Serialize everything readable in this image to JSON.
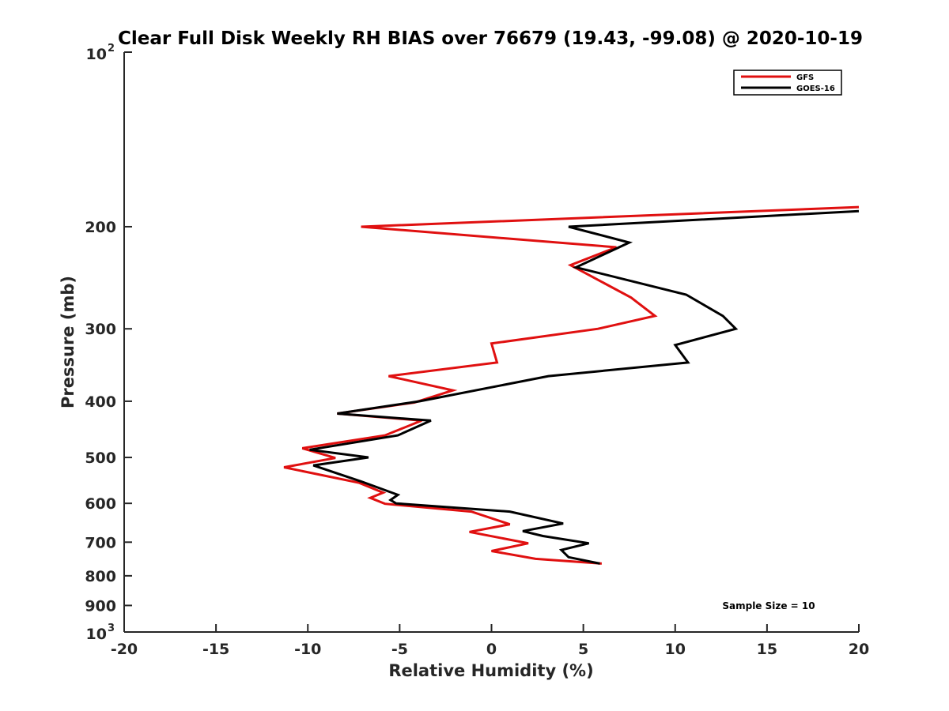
{
  "chart_data": {
    "type": "line",
    "title": "Clear Full Disk Weekly RH BIAS over 76679 (19.43, -99.08) @ 2020-10-19",
    "xlabel": "Relative Humidity (%)",
    "ylabel": "Pressure (mb)",
    "xlim": [
      -20,
      20
    ],
    "ylim": [
      100,
      1000
    ],
    "y_scale": "log",
    "y_reversed": true,
    "grid": false,
    "legend_position": "top-right",
    "x_ticks": [
      "-20",
      "-15",
      "-10",
      "-5",
      "0",
      "5",
      "10",
      "15",
      "20"
    ],
    "y_ticks": [
      {
        "value": 100,
        "base": "10",
        "exp": "2"
      },
      {
        "value": 200,
        "label": "200"
      },
      {
        "value": 300,
        "label": "300"
      },
      {
        "value": 400,
        "label": "400"
      },
      {
        "value": 500,
        "label": "500"
      },
      {
        "value": 600,
        "label": "600"
      },
      {
        "value": 700,
        "label": "700"
      },
      {
        "value": 800,
        "label": "800"
      },
      {
        "value": 900,
        "label": "900"
      },
      {
        "value": 1000,
        "base": "10",
        "exp": "3"
      }
    ],
    "series": [
      {
        "name": "GFS",
        "color": "#e01010",
        "points": [
          {
            "x": 20.0,
            "y": 185
          },
          {
            "x": -7.1,
            "y": 200
          },
          {
            "x": 6.8,
            "y": 217
          },
          {
            "x": 4.3,
            "y": 233
          },
          {
            "x": 7.6,
            "y": 265
          },
          {
            "x": 8.9,
            "y": 285
          },
          {
            "x": 5.8,
            "y": 300
          },
          {
            "x": 0.0,
            "y": 318
          },
          {
            "x": 0.3,
            "y": 343
          },
          {
            "x": -5.6,
            "y": 362
          },
          {
            "x": -2.1,
            "y": 383
          },
          {
            "x": -4.2,
            "y": 402
          },
          {
            "x": -8.4,
            "y": 420
          },
          {
            "x": -3.8,
            "y": 432
          },
          {
            "x": -5.8,
            "y": 458
          },
          {
            "x": -10.3,
            "y": 482
          },
          {
            "x": -8.5,
            "y": 501
          },
          {
            "x": -11.3,
            "y": 520
          },
          {
            "x": -7.2,
            "y": 553
          },
          {
            "x": -5.9,
            "y": 575
          },
          {
            "x": -6.6,
            "y": 587
          },
          {
            "x": -5.8,
            "y": 601
          },
          {
            "x": -1.1,
            "y": 620
          },
          {
            "x": 1.0,
            "y": 652
          },
          {
            "x": -1.2,
            "y": 672
          },
          {
            "x": 2.0,
            "y": 703
          },
          {
            "x": 0.0,
            "y": 725
          },
          {
            "x": 2.4,
            "y": 748
          },
          {
            "x": 6.0,
            "y": 762
          }
        ]
      },
      {
        "name": "GOES-16",
        "color": "#000000",
        "points": [
          {
            "x": 20.0,
            "y": 188
          },
          {
            "x": 4.2,
            "y": 200
          },
          {
            "x": 7.5,
            "y": 213
          },
          {
            "x": 4.6,
            "y": 235
          },
          {
            "x": 10.6,
            "y": 262
          },
          {
            "x": 12.6,
            "y": 285
          },
          {
            "x": 13.3,
            "y": 300
          },
          {
            "x": 10.0,
            "y": 320
          },
          {
            "x": 10.7,
            "y": 343
          },
          {
            "x": 3.1,
            "y": 362
          },
          {
            "x": -3.9,
            "y": 400
          },
          {
            "x": -8.4,
            "y": 420
          },
          {
            "x": -3.3,
            "y": 432
          },
          {
            "x": -5.1,
            "y": 458
          },
          {
            "x": -9.9,
            "y": 485
          },
          {
            "x": -6.7,
            "y": 500
          },
          {
            "x": -9.7,
            "y": 516
          },
          {
            "x": -7.1,
            "y": 550
          },
          {
            "x": -5.1,
            "y": 580
          },
          {
            "x": -5.5,
            "y": 592
          },
          {
            "x": -5.2,
            "y": 600
          },
          {
            "x": 1.0,
            "y": 620
          },
          {
            "x": 3.9,
            "y": 650
          },
          {
            "x": 1.7,
            "y": 670
          },
          {
            "x": 2.8,
            "y": 683
          },
          {
            "x": 5.3,
            "y": 703
          },
          {
            "x": 3.8,
            "y": 722
          },
          {
            "x": 4.2,
            "y": 743
          },
          {
            "x": 5.9,
            "y": 762
          }
        ]
      }
    ],
    "annotations": [
      {
        "text": "Sample Size = 10"
      }
    ]
  }
}
